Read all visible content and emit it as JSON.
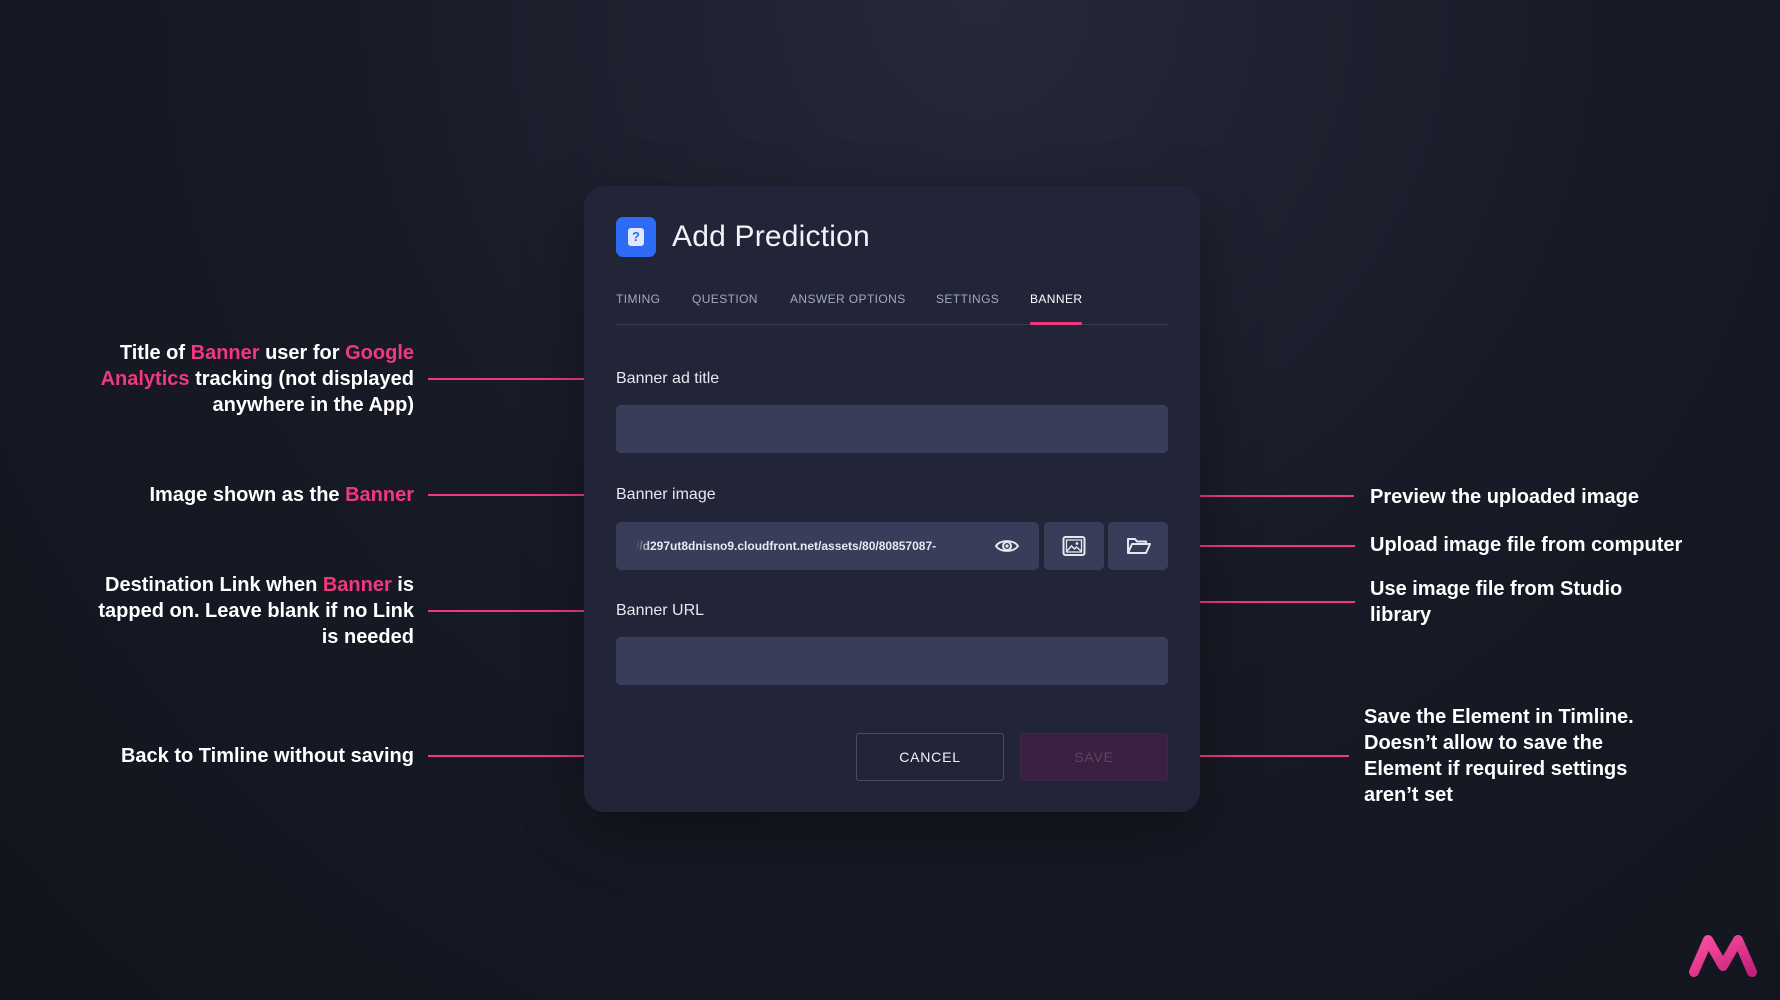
{
  "dialog": {
    "icon": "question-mark-icon",
    "icon_glyph": "?",
    "title": "Add Prediction",
    "tabs": [
      {
        "label": "TIMING"
      },
      {
        "label": "QUESTION"
      },
      {
        "label": "ANSWER OPTIONS"
      },
      {
        "label": "SETTINGS"
      },
      {
        "label": "BANNER",
        "active": true
      }
    ],
    "fields": {
      "banner_title": {
        "label": "Banner ad title",
        "value": ""
      },
      "banner_image": {
        "label": "Banner image",
        "value": "//d297ut8dnisno9.cloudfront.net/assets/80/80857087-"
      },
      "banner_url": {
        "label": "Banner URL",
        "value": ""
      }
    },
    "buttons": {
      "cancel": "CANCEL",
      "save": "SAVE"
    }
  },
  "annotations": {
    "title": {
      "l1a": "Title of ",
      "l1b": "Banner",
      "l1c": " user for ",
      "l1d": "Google",
      "l2a": "Analytics",
      "l2b": " tracking (not displayed",
      "l3": "anywhere in the App)"
    },
    "image": {
      "a": "Image shown as the ",
      "b": "Banner"
    },
    "url": {
      "l1a": "Destination Link when ",
      "l1b": "Banner",
      "l1c": " is",
      "l2": "tapped on. Leave blank if no Link",
      "l3": "is needed"
    },
    "cancel": "Back to Timline without saving",
    "preview": "Preview the uploaded image",
    "upload": "Upload image file from computer",
    "library": {
      "l1": "Use image file from Studio",
      "l2": "library"
    },
    "save": {
      "l1": "Save the Element in Timline.",
      "l2": "Doesn’t allow to save the",
      "l3": "Element if required settings",
      "l4": "aren’t set"
    }
  },
  "colors": {
    "accent": "#f0387f",
    "primary": "#2e6cf5",
    "panel": "#222537",
    "field": "#393d5a"
  },
  "logo": "brand-m-logo"
}
